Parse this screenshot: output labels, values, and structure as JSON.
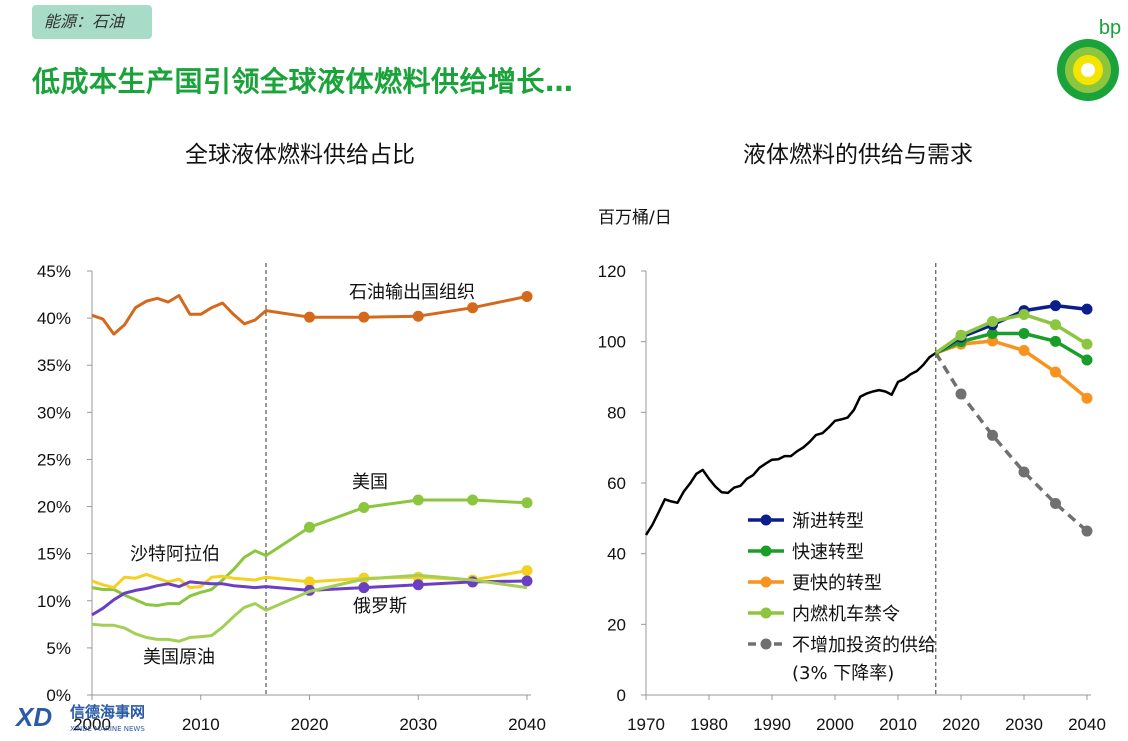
{
  "header": {
    "tag": "能源：石油",
    "headline": "低成本生产国引领全球液体燃料供给增长…",
    "logo_text": "bp"
  },
  "watermark": {
    "text": "信德海事网",
    "sub": "XINDE MARINE NEWS"
  },
  "colors": {
    "opec": "#d4691b",
    "usa": "#8cc63f",
    "saudi": "#f5d020",
    "russia": "#6a3fc6",
    "us_crude": "#a3cf55",
    "history": "#000000",
    "evolving": "#0b1e8c",
    "rapid": "#1a9e2a",
    "faster": "#f7931e",
    "ice_ban": "#8cc63f",
    "no_invest": "#707070",
    "headline": "#1aa33a"
  },
  "chart_data": [
    {
      "type": "line",
      "title": "全球液体燃料供给占比",
      "xlabel": "",
      "ylabel": "",
      "xlim": [
        2000,
        2040
      ],
      "ylim": [
        0,
        45
      ],
      "x_ticks": [
        "2000",
        "2010",
        "2020",
        "2030",
        "2040"
      ],
      "y_ticks": [
        "0%",
        "5%",
        "10%",
        "15%",
        "20%",
        "25%",
        "30%",
        "35%",
        "40%",
        "45%"
      ],
      "divider_x": 2016,
      "series": [
        {
          "name": "石油输出国组织",
          "color_key": "opec",
          "markers_from": 2016,
          "x": [
            2000,
            2001,
            2002,
            2003,
            2004,
            2005,
            2006,
            2007,
            2008,
            2009,
            2010,
            2011,
            2012,
            2013,
            2014,
            2015,
            2016,
            2020,
            2025,
            2030,
            2035,
            2040
          ],
          "y": [
            40.3,
            39.9,
            38.3,
            39.3,
            41.1,
            41.8,
            42.1,
            41.7,
            42.4,
            40.4,
            40.4,
            41.1,
            41.6,
            40.4,
            39.4,
            39.8,
            40.8,
            40.1,
            40.1,
            40.2,
            41.1,
            42.3
          ]
        },
        {
          "name": "美国",
          "color_key": "usa",
          "markers_from": 2016,
          "x": [
            2000,
            2001,
            2002,
            2003,
            2004,
            2005,
            2006,
            2007,
            2008,
            2009,
            2010,
            2011,
            2012,
            2013,
            2014,
            2015,
            2016,
            2020,
            2025,
            2030,
            2035,
            2040
          ],
          "y": [
            11.4,
            11.2,
            11.2,
            10.6,
            10.1,
            9.6,
            9.5,
            9.7,
            9.7,
            10.5,
            10.9,
            11.2,
            12.2,
            13.3,
            14.6,
            15.3,
            14.8,
            17.8,
            19.9,
            20.7,
            20.7,
            20.4
          ]
        },
        {
          "name": "沙特阿拉伯",
          "color_key": "saudi",
          "markers_from": 2016,
          "x": [
            2000,
            2001,
            2002,
            2003,
            2004,
            2005,
            2006,
            2007,
            2008,
            2009,
            2010,
            2011,
            2012,
            2013,
            2014,
            2015,
            2016,
            2020,
            2025,
            2030,
            2035,
            2040
          ],
          "y": [
            12.1,
            11.7,
            11.4,
            12.5,
            12.4,
            12.8,
            12.4,
            12.0,
            12.3,
            11.4,
            11.5,
            12.5,
            12.6,
            12.4,
            12.3,
            12.2,
            12.5,
            12.0,
            12.4,
            12.5,
            12.2,
            13.2
          ]
        },
        {
          "name": "俄罗斯",
          "color_key": "russia",
          "markers_from": 2016,
          "x": [
            2000,
            2001,
            2002,
            2003,
            2004,
            2005,
            2006,
            2007,
            2008,
            2009,
            2010,
            2011,
            2012,
            2013,
            2014,
            2015,
            2016,
            2020,
            2025,
            2030,
            2035,
            2040
          ],
          "y": [
            8.5,
            9.2,
            10.1,
            10.8,
            11.1,
            11.3,
            11.6,
            11.8,
            11.5,
            12.0,
            11.9,
            11.8,
            11.8,
            11.6,
            11.5,
            11.4,
            11.5,
            11.1,
            11.4,
            11.7,
            12.0,
            12.1
          ]
        },
        {
          "name": "美国原油",
          "color_key": "us_crude",
          "markers_from": 2999,
          "x": [
            2000,
            2001,
            2002,
            2003,
            2004,
            2005,
            2006,
            2007,
            2008,
            2009,
            2010,
            2011,
            2012,
            2013,
            2014,
            2015,
            2016,
            2020,
            2025,
            2030,
            2035,
            2040
          ],
          "y": [
            7.5,
            7.4,
            7.4,
            7.1,
            6.5,
            6.1,
            5.9,
            5.9,
            5.7,
            6.1,
            6.2,
            6.3,
            7.2,
            8.3,
            9.3,
            9.7,
            9.0,
            11.0,
            12.3,
            12.7,
            12.2,
            11.4
          ]
        }
      ],
      "labels": [
        {
          "text": "石油输出国组织",
          "series": "石油输出国组织"
        },
        {
          "text": "美国",
          "series": "美国"
        },
        {
          "text": "沙特阿拉伯",
          "series": "沙特阿拉伯"
        },
        {
          "text": "俄罗斯",
          "series": "俄罗斯"
        },
        {
          "text": "美国原油",
          "series": "美国原油"
        }
      ]
    },
    {
      "type": "line",
      "title": "液体燃料的供给与需求",
      "ylabel": "百万桶/日",
      "xlabel": "",
      "xlim": [
        1970,
        2040
      ],
      "ylim": [
        0,
        120
      ],
      "x_ticks": [
        "1970",
        "1980",
        "1990",
        "2000",
        "2010",
        "2020",
        "2030",
        "2040"
      ],
      "y_ticks": [
        "0",
        "20",
        "40",
        "60",
        "80",
        "100",
        "120"
      ],
      "divider_x": 2016,
      "history": {
        "x": [
          1970,
          1971,
          1972,
          1973,
          1974,
          1975,
          1976,
          1977,
          1978,
          1979,
          1980,
          1981,
          1982,
          1983,
          1984,
          1985,
          1986,
          1987,
          1988,
          1989,
          1990,
          1991,
          1992,
          1993,
          1994,
          1995,
          1996,
          1997,
          1998,
          1999,
          2000,
          2001,
          2002,
          2003,
          2004,
          2005,
          2006,
          2007,
          2008,
          2009,
          2010,
          2011,
          2012,
          2013,
          2014,
          2015,
          2016
        ],
        "y": [
          45.3,
          48.1,
          51.7,
          55.4,
          54.8,
          54.4,
          57.6,
          59.9,
          62.6,
          63.7,
          61.2,
          59.0,
          57.4,
          57.2,
          58.7,
          59.2,
          61.2,
          62.2,
          64.3,
          65.5,
          66.6,
          66.7,
          67.6,
          67.6,
          69.0,
          70.1,
          71.7,
          73.6,
          74.1,
          75.7,
          77.6,
          78.0,
          78.5,
          80.7,
          84.4,
          85.3,
          85.9,
          86.3,
          85.9,
          85.0,
          88.6,
          89.4,
          90.8,
          91.7,
          93.4,
          95.6,
          96.8
        ]
      },
      "series": [
        {
          "name": "渐进转型",
          "color_key": "evolving",
          "dashed": false,
          "x": [
            2016,
            2020,
            2025,
            2030,
            2035,
            2040
          ],
          "y": [
            96.8,
            101.3,
            104.8,
            108.8,
            110.2,
            109.2
          ]
        },
        {
          "name": "快速转型",
          "color_key": "rapid",
          "dashed": false,
          "x": [
            2016,
            2020,
            2025,
            2030,
            2035,
            2040
          ],
          "y": [
            96.8,
            100.0,
            102.3,
            102.3,
            100.1,
            94.8
          ]
        },
        {
          "name": "更快的转型",
          "color_key": "faster",
          "dashed": false,
          "x": [
            2016,
            2020,
            2025,
            2030,
            2035,
            2040
          ],
          "y": [
            96.8,
            99.3,
            100.2,
            97.5,
            91.4,
            84.0
          ]
        },
        {
          "name": "内燃机车禁令",
          "color_key": "ice_ban",
          "dashed": false,
          "x": [
            2016,
            2020,
            2025,
            2030,
            2035,
            2040
          ],
          "y": [
            96.8,
            101.8,
            105.7,
            107.7,
            104.8,
            99.3
          ]
        },
        {
          "name": "不增加投资的供给",
          "color_key": "no_invest",
          "dashed": true,
          "x": [
            2016,
            2020,
            2025,
            2030,
            2035,
            2040
          ],
          "y": [
            96.8,
            85.2,
            73.5,
            63.1,
            54.2,
            46.4
          ]
        }
      ],
      "legend": {
        "position": "bottom-center",
        "items": [
          "渐进转型",
          "快速转型",
          "更快的转型",
          "内燃机车禁令",
          "不增加投资的供给"
        ],
        "note": "(3% 下降率)"
      }
    }
  ]
}
